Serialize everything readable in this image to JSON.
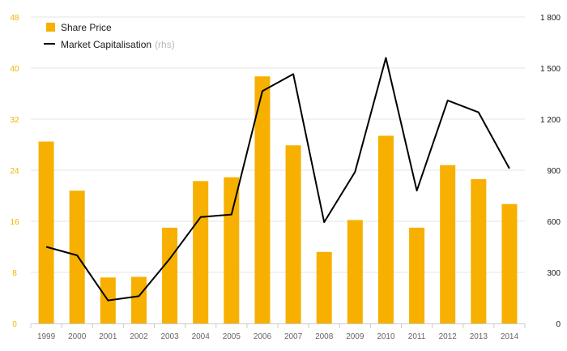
{
  "chart_data": {
    "type": "bar",
    "categories": [
      "1999",
      "2000",
      "2001",
      "2002",
      "2003",
      "2004",
      "2005",
      "2006",
      "2007",
      "2008",
      "2009",
      "2010",
      "2011",
      "2012",
      "2013",
      "2014"
    ],
    "series": [
      {
        "name": "Share Price",
        "type": "bar",
        "axis": "left",
        "color": "#f7b000",
        "values": [
          28.5,
          20.8,
          7.2,
          7.3,
          15.0,
          22.3,
          22.9,
          38.7,
          27.9,
          11.2,
          16.2,
          29.4,
          15.0,
          24.8,
          22.6,
          18.7
        ]
      },
      {
        "name": "Market Capitalisation",
        "name_suffix": "(rhs)",
        "type": "line",
        "axis": "right",
        "color": "#000000",
        "values": [
          450,
          400,
          135,
          160,
          380,
          625,
          640,
          1365,
          1465,
          595,
          890,
          1560,
          780,
          1310,
          1240,
          910
        ]
      }
    ],
    "y_left": {
      "min": 0,
      "max": 48,
      "ticks": [
        "0",
        "8",
        "16",
        "24",
        "32",
        "40",
        "48"
      ],
      "tick_values": [
        0,
        8,
        16,
        24,
        32,
        40,
        48
      ],
      "color": "#f0b400"
    },
    "y_right": {
      "min": 0,
      "max": 1800,
      "ticks": [
        "0",
        "300",
        "600",
        "900",
        "1 200",
        "1 500",
        "1 800"
      ],
      "tick_values": [
        0,
        300,
        600,
        900,
        1200,
        1500,
        1800
      ],
      "color": "#1a1a1a"
    },
    "grid": "horizontal",
    "legend": "top-left",
    "title": "",
    "xlabel": "",
    "ylabel": ""
  }
}
